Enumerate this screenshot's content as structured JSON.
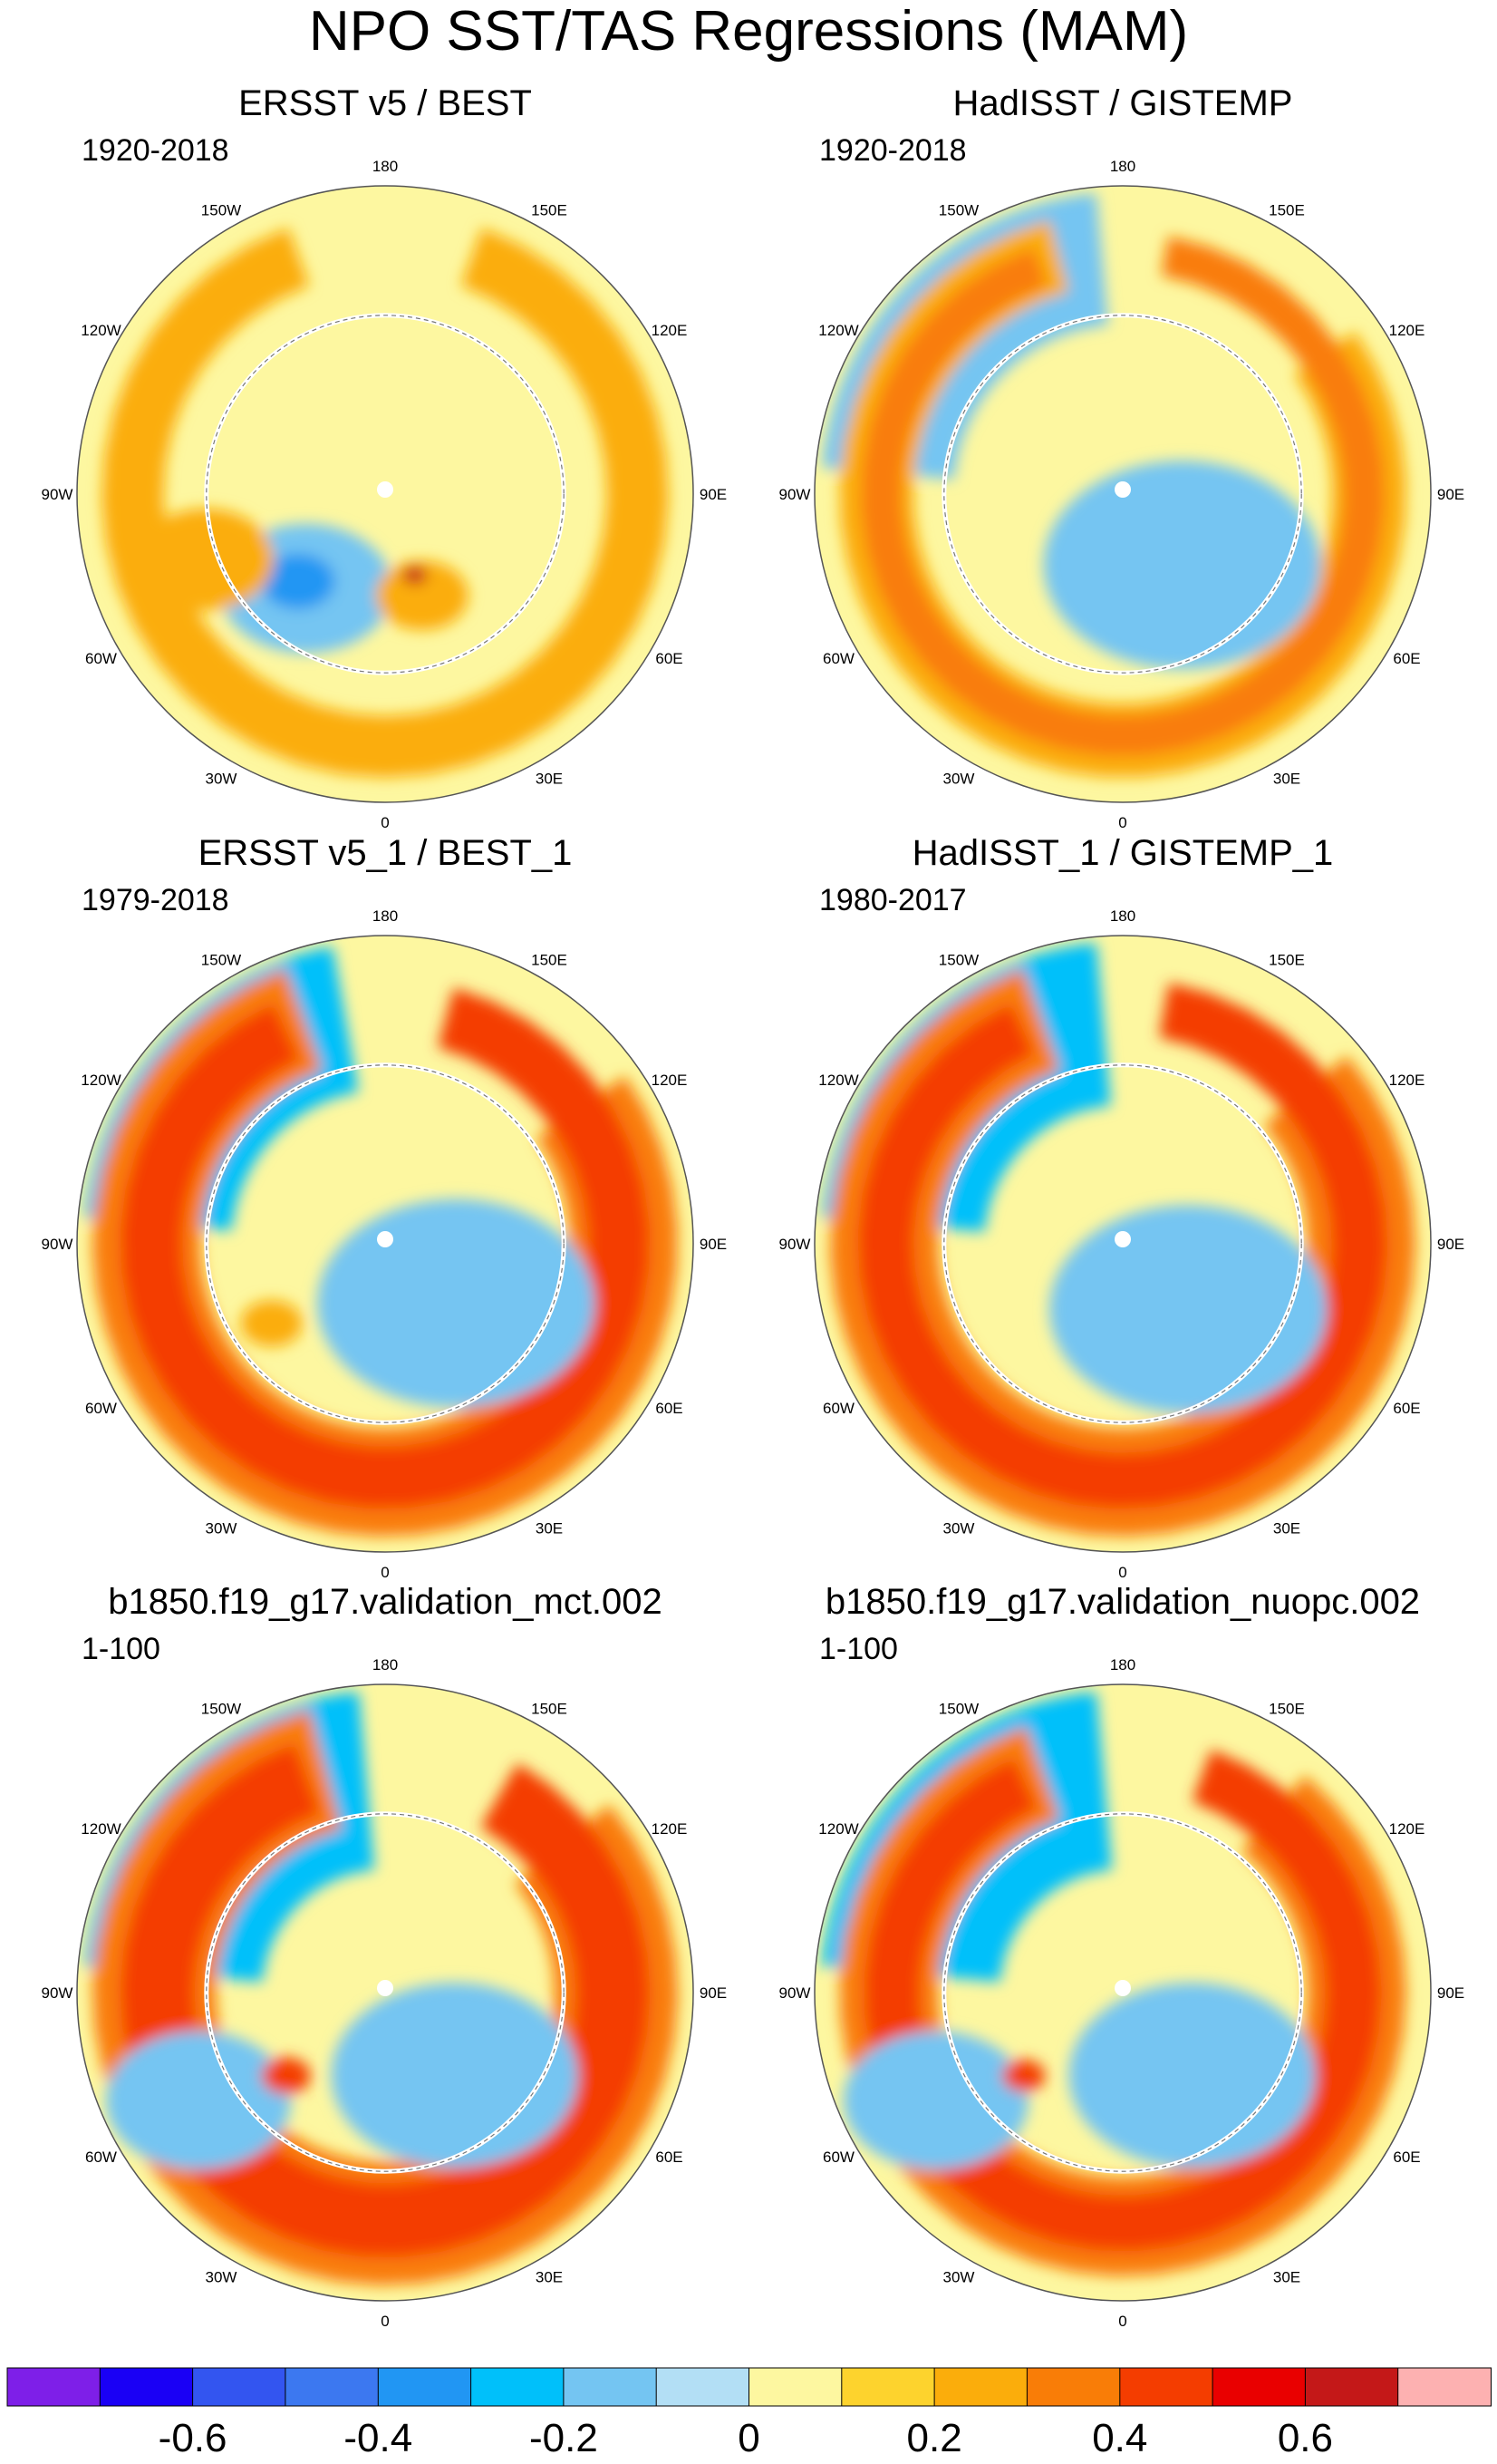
{
  "chart_data": {
    "type": "map-panels",
    "title": "NPO SST/TAS Regressions (MAM)",
    "projection": "polar stereographic, North Pole",
    "longitude_labels": [
      "180",
      "150E",
      "120E",
      "90E",
      "60E",
      "30E",
      "0",
      "30W",
      "60W",
      "90W",
      "120W",
      "150W"
    ],
    "panels": [
      {
        "title": "ERSST v5 / BEST",
        "period": "1920-2018",
        "features": [
          {
            "kind": "band",
            "value": 0.2,
            "lon_start": -160,
            "lon_end": 160,
            "r": [
              0.72,
              0.92
            ]
          },
          {
            "kind": "blob",
            "value": -0.2,
            "lon": -40,
            "r": 0.4,
            "size": 0.28
          },
          {
            "kind": "blob",
            "value": -0.4,
            "lon": -45,
            "r": 0.4,
            "size": 0.12
          },
          {
            "kind": "blob",
            "value": 0.2,
            "lon": -70,
            "r": 0.62,
            "size": 0.22
          },
          {
            "kind": "blob",
            "value": 0.2,
            "lon": 20,
            "r": 0.35,
            "size": 0.15
          },
          {
            "kind": "blob",
            "value": 0.6,
            "lon": 20,
            "r": 0.28,
            "size": 0.04
          }
        ]
      },
      {
        "title": "HadISST / GISTEMP",
        "period": "1920-2018",
        "features": [
          {
            "kind": "band",
            "value": -0.2,
            "lon_start": -175,
            "lon_end": -95,
            "r": [
              0.55,
              0.98
            ]
          },
          {
            "kind": "band",
            "value": 0.2,
            "lon_start": -165,
            "lon_end": 125,
            "r": [
              0.68,
              0.92
            ]
          },
          {
            "kind": "band",
            "value": 0.3,
            "lon_start": -160,
            "lon_end": 170,
            "r": [
              0.72,
              0.85
            ]
          },
          {
            "kind": "blob",
            "value": -0.2,
            "lon": 40,
            "r": 0.3,
            "size": 0.45
          }
        ]
      },
      {
        "title": "ERSST v5_1 / BEST_1",
        "period": "1979-2018",
        "features": [
          {
            "kind": "band",
            "value": -0.3,
            "lon_start": -170,
            "lon_end": -95,
            "r": [
              0.5,
              0.98
            ]
          },
          {
            "kind": "band",
            "value": 0.3,
            "lon_start": -160,
            "lon_end": 125,
            "r": [
              0.6,
              0.95
            ]
          },
          {
            "kind": "band",
            "value": 0.4,
            "lon_start": -155,
            "lon_end": 165,
            "r": [
              0.66,
              0.86
            ]
          },
          {
            "kind": "blob",
            "value": -0.2,
            "lon": 50,
            "r": 0.3,
            "size": 0.45
          },
          {
            "kind": "blob",
            "value": 0.2,
            "lon": -55,
            "r": 0.45,
            "size": 0.1
          }
        ]
      },
      {
        "title": "HadISST_1 / GISTEMP_1",
        "period": "1980-2017",
        "features": [
          {
            "kind": "band",
            "value": -0.3,
            "lon_start": -175,
            "lon_end": -95,
            "r": [
              0.45,
              0.98
            ]
          },
          {
            "kind": "band",
            "value": -0.4,
            "lon_start": -150,
            "lon_end": -110,
            "r": [
              0.7,
              0.95
            ]
          },
          {
            "kind": "band",
            "value": 0.3,
            "lon_start": -160,
            "lon_end": 130,
            "r": [
              0.6,
              0.95
            ]
          },
          {
            "kind": "band",
            "value": 0.4,
            "lon_start": -155,
            "lon_end": 170,
            "r": [
              0.68,
              0.86
            ]
          },
          {
            "kind": "blob",
            "value": -0.2,
            "lon": 45,
            "r": 0.3,
            "size": 0.45
          }
        ]
      },
      {
        "title": "b1850.f19_g17.validation_mct.002",
        "period": "1-100",
        "features": [
          {
            "kind": "band",
            "value": -0.3,
            "lon_start": -175,
            "lon_end": -95,
            "r": [
              0.4,
              0.98
            ]
          },
          {
            "kind": "band",
            "value": -0.4,
            "lon_start": -160,
            "lon_end": -115,
            "r": [
              0.6,
              0.92
            ]
          },
          {
            "kind": "band",
            "value": 0.3,
            "lon_start": -165,
            "lon_end": 130,
            "r": [
              0.55,
              0.95
            ]
          },
          {
            "kind": "band",
            "value": 0.4,
            "lon_start": -160,
            "lon_end": 150,
            "r": [
              0.62,
              0.86
            ]
          },
          {
            "kind": "blob",
            "value": -0.2,
            "lon": -60,
            "r": 0.7,
            "size": 0.3
          },
          {
            "kind": "blob",
            "value": 0.4,
            "lon": -50,
            "r": 0.42,
            "size": 0.08
          },
          {
            "kind": "blob",
            "value": -0.2,
            "lon": 40,
            "r": 0.35,
            "size": 0.4
          }
        ]
      },
      {
        "title": "b1850.f19_g17.validation_nuopc.002",
        "period": "1-100",
        "features": [
          {
            "kind": "band",
            "value": -0.3,
            "lon_start": -175,
            "lon_end": -95,
            "r": [
              0.4,
              0.98
            ]
          },
          {
            "kind": "band",
            "value": 0.3,
            "lon_start": -160,
            "lon_end": 140,
            "r": [
              0.6,
              0.92
            ]
          },
          {
            "kind": "band",
            "value": 0.4,
            "lon_start": -155,
            "lon_end": 160,
            "r": [
              0.66,
              0.84
            ]
          },
          {
            "kind": "blob",
            "value": -0.2,
            "lon": -60,
            "r": 0.7,
            "size": 0.3
          },
          {
            "kind": "blob",
            "value": 0.4,
            "lon": -50,
            "r": 0.42,
            "size": 0.07
          },
          {
            "kind": "blob",
            "value": -0.2,
            "lon": 40,
            "r": 0.35,
            "size": 0.4
          }
        ]
      }
    ],
    "colorbar": {
      "min": -0.8,
      "max": 0.8,
      "step": 0.1,
      "colors": [
        "#7e1fe8",
        "#1a00f5",
        "#3355f0",
        "#3c78f0",
        "#2196f3",
        "#00c0fa",
        "#74c5f2",
        "#b3dff5",
        "#fdf7a0",
        "#fdd32d",
        "#fbad0b",
        "#f97d07",
        "#f43d00",
        "#e90000",
        "#c41818",
        "#fdb1b1"
      ],
      "tick_labels": [
        "-0.6",
        "-0.4",
        "-0.2",
        "0",
        "0.2",
        "0.4",
        "0.6"
      ],
      "tick_values": [
        -0.6,
        -0.4,
        -0.2,
        0,
        0.2,
        0.4,
        0.6
      ]
    }
  }
}
